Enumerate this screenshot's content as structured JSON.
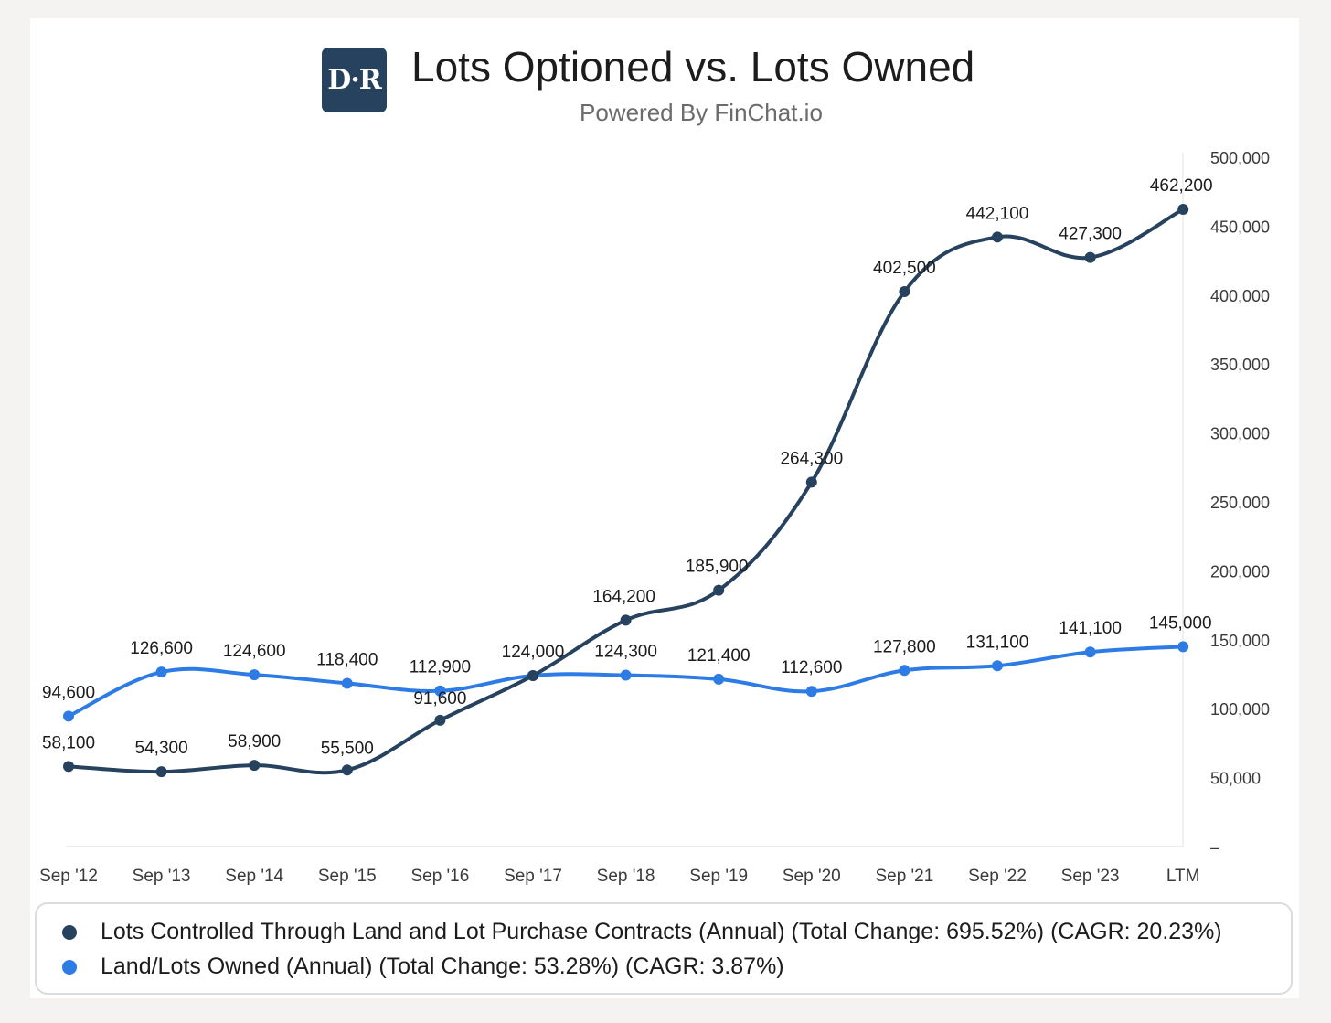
{
  "header": {
    "logo_text": "D·R",
    "title": "Lots Optioned vs. Lots Owned",
    "subtitle": "Powered By FinChat.io"
  },
  "legend": {
    "items": [
      {
        "label": "Lots Controlled Through Land and Lot Purchase Contracts (Annual) (Total Change: 695.52%) (CAGR: 20.23%)",
        "color": "#26425e"
      },
      {
        "label": "Land/Lots Owned (Annual) (Total Change: 53.28%) (CAGR: 3.87%)",
        "color": "#2d7be5"
      }
    ]
  },
  "chart_data": {
    "type": "line",
    "title": "Lots Optioned vs. Lots Owned",
    "subtitle": "Powered By FinChat.io",
    "categories": [
      "Sep '12",
      "Sep '13",
      "Sep '14",
      "Sep '15",
      "Sep '16",
      "Sep '17",
      "Sep '18",
      "Sep '19",
      "Sep '20",
      "Sep '21",
      "Sep '22",
      "Sep '23",
      "LTM"
    ],
    "series": [
      {
        "name": "Lots Controlled Through Land and Lot Purchase Contracts (Annual) (Total Change: 695.52%) (CAGR: 20.23%)",
        "color": "#26425e",
        "values": [
          58100,
          54300,
          58900,
          55500,
          91600,
          124000,
          164200,
          185900,
          264300,
          402500,
          442100,
          427300,
          462200
        ],
        "labels": [
          "58,100",
          "54,300",
          "58,900",
          "55,500",
          "91,600",
          "124,000",
          "164,200",
          "185,900",
          "264,300",
          "402,500",
          "442,100",
          "427,300",
          "462,200"
        ]
      },
      {
        "name": "Land/Lots Owned (Annual) (Total Change: 53.28%) (CAGR: 3.87%)",
        "color": "#2d7be5",
        "values": [
          94600,
          126600,
          124600,
          118400,
          112900,
          124000,
          124300,
          121400,
          112600,
          127800,
          131100,
          141100,
          145000
        ],
        "labels": [
          "94,600",
          "126,600",
          "124,600",
          "118,400",
          "112,900",
          "124,000",
          "124,300",
          "121,400",
          "112,600",
          "127,800",
          "131,100",
          "141,100",
          "145,000"
        ]
      }
    ],
    "y_ticks": [
      0,
      50000,
      100000,
      150000,
      200000,
      250000,
      300000,
      350000,
      400000,
      450000,
      500000
    ],
    "y_tick_labels": [
      "–",
      "50,000",
      "100,000",
      "150,000",
      "200,000",
      "250,000",
      "300,000",
      "350,000",
      "400,000",
      "450,000",
      "500,000"
    ],
    "ylim": [
      0,
      500000
    ],
    "y_axis_side": "right",
    "grid": false,
    "legend": "bottom"
  }
}
